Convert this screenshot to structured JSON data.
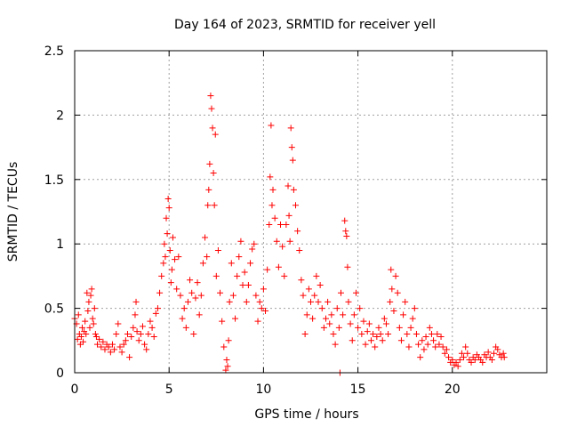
{
  "chart_data": {
    "type": "scatter",
    "title": "Day 164 of 2023, SRMTID for receiver yell",
    "xlabel": "GPS time / hours",
    "ylabel": "SRMTID / TECUs",
    "xlim": [
      0,
      25
    ],
    "ylim": [
      0,
      2.5
    ],
    "xticks": [
      0,
      5,
      10,
      15,
      20
    ],
    "xtick_labels": [
      "0",
      "5",
      "10",
      "15",
      "20"
    ],
    "yticks": [
      0,
      0.5,
      1,
      1.5,
      2,
      2.5
    ],
    "ytick_labels": [
      "0",
      "0.5",
      "1",
      "1.5",
      "2",
      "2.5"
    ],
    "grid": true,
    "marker": "+",
    "color": "#ff0000",
    "series": [
      {
        "name": "SRMTID",
        "points": [
          [
            0.0,
            0.42
          ],
          [
            0.1,
            0.38
          ],
          [
            0.15,
            0.26
          ],
          [
            0.2,
            0.45
          ],
          [
            0.25,
            0.3
          ],
          [
            0.3,
            0.22
          ],
          [
            0.35,
            0.28
          ],
          [
            0.4,
            0.35
          ],
          [
            0.45,
            0.24
          ],
          [
            0.5,
            0.32
          ],
          [
            0.55,
            0.4
          ],
          [
            0.6,
            0.3
          ],
          [
            0.65,
            0.62
          ],
          [
            0.7,
            0.48
          ],
          [
            0.75,
            0.55
          ],
          [
            0.8,
            0.35
          ],
          [
            0.85,
            0.6
          ],
          [
            0.9,
            0.65
          ],
          [
            0.95,
            0.42
          ],
          [
            1.0,
            0.38
          ],
          [
            1.05,
            0.5
          ],
          [
            1.1,
            0.3
          ],
          [
            1.15,
            0.28
          ],
          [
            1.2,
            0.22
          ],
          [
            1.3,
            0.26
          ],
          [
            1.4,
            0.2
          ],
          [
            1.5,
            0.24
          ],
          [
            1.6,
            0.18
          ],
          [
            1.7,
            0.22
          ],
          [
            1.8,
            0.2
          ],
          [
            1.9,
            0.16
          ],
          [
            2.0,
            0.22
          ],
          [
            2.1,
            0.18
          ],
          [
            2.2,
            0.3
          ],
          [
            2.3,
            0.38
          ],
          [
            2.4,
            0.2
          ],
          [
            2.5,
            0.16
          ],
          [
            2.6,
            0.22
          ],
          [
            2.7,
            0.25
          ],
          [
            2.8,
            0.3
          ],
          [
            2.9,
            0.12
          ],
          [
            3.0,
            0.28
          ],
          [
            3.1,
            0.35
          ],
          [
            3.2,
            0.45
          ],
          [
            3.25,
            0.55
          ],
          [
            3.3,
            0.32
          ],
          [
            3.4,
            0.25
          ],
          [
            3.5,
            0.3
          ],
          [
            3.6,
            0.36
          ],
          [
            3.7,
            0.22
          ],
          [
            3.8,
            0.18
          ],
          [
            3.9,
            0.3
          ],
          [
            4.0,
            0.4
          ],
          [
            4.1,
            0.35
          ],
          [
            4.2,
            0.28
          ],
          [
            4.3,
            0.46
          ],
          [
            4.4,
            0.5
          ],
          [
            4.5,
            0.62
          ],
          [
            4.6,
            0.75
          ],
          [
            4.7,
            0.85
          ],
          [
            4.75,
            1.0
          ],
          [
            4.8,
            0.9
          ],
          [
            4.85,
            1.2
          ],
          [
            4.9,
            1.08
          ],
          [
            4.95,
            1.35
          ],
          [
            5.0,
            1.28
          ],
          [
            5.05,
            0.95
          ],
          [
            5.1,
            0.7
          ],
          [
            5.15,
            0.8
          ],
          [
            5.2,
            1.05
          ],
          [
            5.3,
            0.88
          ],
          [
            5.4,
            0.65
          ],
          [
            5.5,
            0.9
          ],
          [
            5.6,
            0.6
          ],
          [
            5.7,
            0.42
          ],
          [
            5.8,
            0.5
          ],
          [
            5.9,
            0.35
          ],
          [
            6.0,
            0.55
          ],
          [
            6.1,
            0.72
          ],
          [
            6.2,
            0.62
          ],
          [
            6.3,
            0.3
          ],
          [
            6.4,
            0.58
          ],
          [
            6.5,
            0.7
          ],
          [
            6.6,
            0.45
          ],
          [
            6.7,
            0.6
          ],
          [
            6.8,
            0.85
          ],
          [
            6.9,
            1.05
          ],
          [
            7.0,
            0.9
          ],
          [
            7.05,
            1.3
          ],
          [
            7.1,
            1.42
          ],
          [
            7.15,
            1.62
          ],
          [
            7.2,
            2.15
          ],
          [
            7.25,
            2.05
          ],
          [
            7.3,
            1.9
          ],
          [
            7.35,
            1.55
          ],
          [
            7.4,
            1.3
          ],
          [
            7.45,
            1.85
          ],
          [
            7.5,
            0.75
          ],
          [
            7.6,
            0.95
          ],
          [
            7.7,
            0.62
          ],
          [
            7.8,
            0.4
          ],
          [
            7.9,
            0.2
          ],
          [
            8.0,
            0.02
          ],
          [
            8.05,
            0.1
          ],
          [
            8.1,
            0.05
          ],
          [
            8.15,
            0.25
          ],
          [
            8.2,
            0.55
          ],
          [
            8.3,
            0.85
          ],
          [
            8.4,
            0.6
          ],
          [
            8.5,
            0.42
          ],
          [
            8.6,
            0.75
          ],
          [
            8.7,
            0.9
          ],
          [
            8.8,
            1.02
          ],
          [
            8.9,
            0.68
          ],
          [
            9.0,
            0.78
          ],
          [
            9.1,
            0.55
          ],
          [
            9.2,
            0.68
          ],
          [
            9.3,
            0.85
          ],
          [
            9.4,
            0.96
          ],
          [
            9.5,
            1.0
          ],
          [
            9.6,
            0.6
          ],
          [
            9.7,
            0.4
          ],
          [
            9.8,
            0.55
          ],
          [
            9.9,
            0.5
          ],
          [
            10.0,
            0.65
          ],
          [
            10.1,
            0.48
          ],
          [
            10.2,
            0.8
          ],
          [
            10.3,
            1.15
          ],
          [
            10.35,
            1.52
          ],
          [
            10.4,
            1.92
          ],
          [
            10.45,
            1.3
          ],
          [
            10.5,
            1.42
          ],
          [
            10.6,
            1.2
          ],
          [
            10.7,
            1.02
          ],
          [
            10.8,
            0.82
          ],
          [
            10.9,
            1.15
          ],
          [
            11.0,
            0.98
          ],
          [
            11.1,
            0.75
          ],
          [
            11.2,
            1.15
          ],
          [
            11.3,
            1.45
          ],
          [
            11.35,
            1.22
          ],
          [
            11.4,
            1.02
          ],
          [
            11.45,
            1.9
          ],
          [
            11.5,
            1.75
          ],
          [
            11.55,
            1.65
          ],
          [
            11.6,
            1.42
          ],
          [
            11.7,
            1.3
          ],
          [
            11.8,
            1.1
          ],
          [
            11.9,
            0.95
          ],
          [
            12.0,
            0.72
          ],
          [
            12.1,
            0.6
          ],
          [
            12.2,
            0.3
          ],
          [
            12.3,
            0.45
          ],
          [
            12.4,
            0.65
          ],
          [
            12.5,
            0.55
          ],
          [
            12.6,
            0.42
          ],
          [
            12.7,
            0.6
          ],
          [
            12.8,
            0.75
          ],
          [
            12.9,
            0.55
          ],
          [
            13.0,
            0.68
          ],
          [
            13.1,
            0.5
          ],
          [
            13.2,
            0.35
          ],
          [
            13.3,
            0.42
          ],
          [
            13.4,
            0.55
          ],
          [
            13.5,
            0.38
          ],
          [
            13.6,
            0.45
          ],
          [
            13.7,
            0.3
          ],
          [
            13.8,
            0.22
          ],
          [
            13.9,
            0.5
          ],
          [
            14.0,
            0.35
          ],
          [
            14.05,
            0.0
          ],
          [
            14.1,
            0.62
          ],
          [
            14.2,
            0.45
          ],
          [
            14.3,
            1.18
          ],
          [
            14.35,
            1.1
          ],
          [
            14.4,
            1.06
          ],
          [
            14.45,
            0.82
          ],
          [
            14.5,
            0.55
          ],
          [
            14.6,
            0.38
          ],
          [
            14.7,
            0.25
          ],
          [
            14.8,
            0.45
          ],
          [
            14.9,
            0.62
          ],
          [
            15.0,
            0.35
          ],
          [
            15.1,
            0.5
          ],
          [
            15.2,
            0.3
          ],
          [
            15.3,
            0.4
          ],
          [
            15.4,
            0.22
          ],
          [
            15.5,
            0.32
          ],
          [
            15.6,
            0.38
          ],
          [
            15.7,
            0.25
          ],
          [
            15.8,
            0.3
          ],
          [
            15.9,
            0.2
          ],
          [
            16.0,
            0.28
          ],
          [
            16.1,
            0.35
          ],
          [
            16.2,
            0.3
          ],
          [
            16.3,
            0.25
          ],
          [
            16.4,
            0.42
          ],
          [
            16.5,
            0.38
          ],
          [
            16.6,
            0.3
          ],
          [
            16.7,
            0.55
          ],
          [
            16.75,
            0.8
          ],
          [
            16.8,
            0.65
          ],
          [
            16.9,
            0.48
          ],
          [
            17.0,
            0.75
          ],
          [
            17.1,
            0.62
          ],
          [
            17.2,
            0.35
          ],
          [
            17.3,
            0.25
          ],
          [
            17.4,
            0.45
          ],
          [
            17.5,
            0.55
          ],
          [
            17.6,
            0.3
          ],
          [
            17.7,
            0.2
          ],
          [
            17.8,
            0.35
          ],
          [
            17.9,
            0.42
          ],
          [
            18.0,
            0.5
          ],
          [
            18.1,
            0.3
          ],
          [
            18.2,
            0.22
          ],
          [
            18.3,
            0.12
          ],
          [
            18.4,
            0.25
          ],
          [
            18.5,
            0.18
          ],
          [
            18.6,
            0.28
          ],
          [
            18.7,
            0.22
          ],
          [
            18.8,
            0.35
          ],
          [
            18.9,
            0.3
          ],
          [
            19.0,
            0.25
          ],
          [
            19.1,
            0.2
          ],
          [
            19.2,
            0.3
          ],
          [
            19.3,
            0.22
          ],
          [
            19.4,
            0.28
          ],
          [
            19.5,
            0.2
          ],
          [
            19.6,
            0.15
          ],
          [
            19.7,
            0.18
          ],
          [
            19.8,
            0.12
          ],
          [
            19.9,
            0.08
          ],
          [
            20.0,
            0.1
          ],
          [
            20.1,
            0.06
          ],
          [
            20.2,
            0.08
          ],
          [
            20.3,
            0.05
          ],
          [
            20.4,
            0.1
          ],
          [
            20.5,
            0.15
          ],
          [
            20.6,
            0.12
          ],
          [
            20.7,
            0.2
          ],
          [
            20.8,
            0.15
          ],
          [
            20.9,
            0.1
          ],
          [
            21.0,
            0.08
          ],
          [
            21.1,
            0.12
          ],
          [
            21.2,
            0.1
          ],
          [
            21.3,
            0.14
          ],
          [
            21.4,
            0.12
          ],
          [
            21.5,
            0.1
          ],
          [
            21.6,
            0.08
          ],
          [
            21.7,
            0.14
          ],
          [
            21.8,
            0.12
          ],
          [
            21.9,
            0.16
          ],
          [
            22.0,
            0.12
          ],
          [
            22.1,
            0.1
          ],
          [
            22.2,
            0.15
          ],
          [
            22.3,
            0.2
          ],
          [
            22.4,
            0.18
          ],
          [
            22.5,
            0.14
          ],
          [
            22.6,
            0.12
          ],
          [
            22.7,
            0.15
          ],
          [
            22.75,
            0.12
          ]
        ]
      }
    ]
  }
}
